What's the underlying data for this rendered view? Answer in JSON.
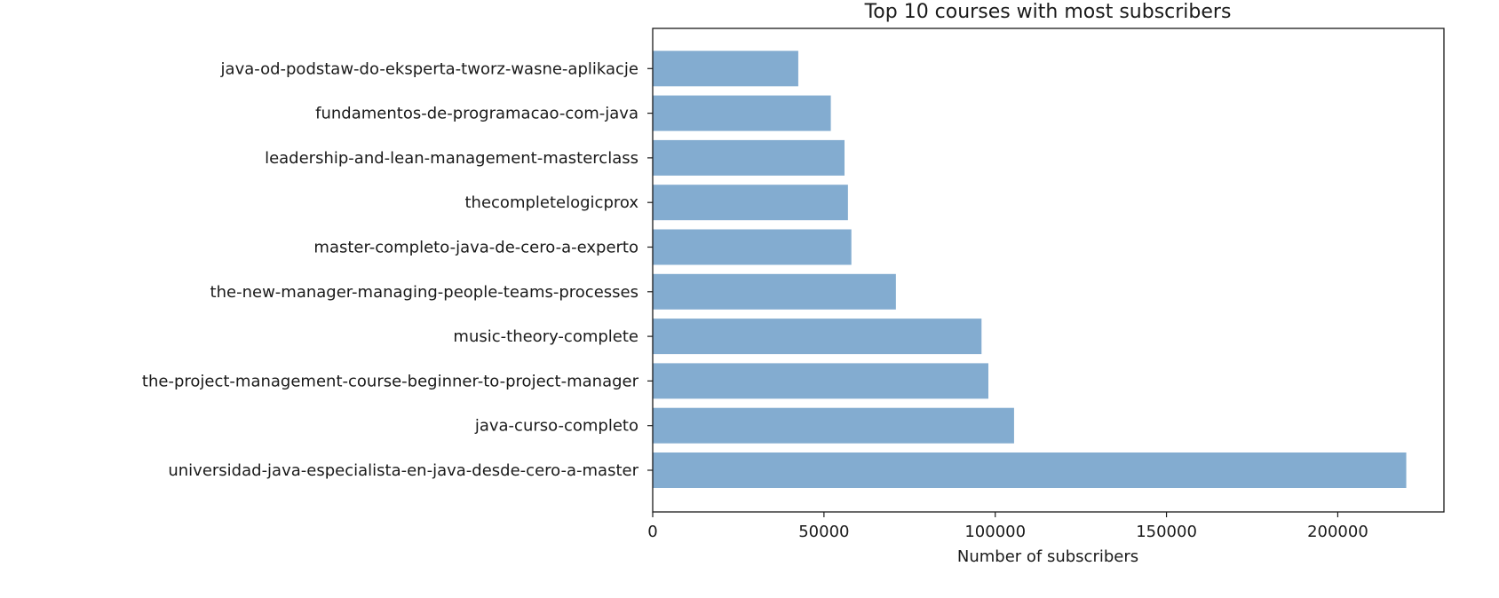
{
  "chart_data": {
    "type": "bar",
    "orientation": "horizontal",
    "title": "Top 10 courses with most subscribers",
    "xlabel": "Number of subscribers",
    "ylabel": "",
    "xlim": [
      0,
      231000
    ],
    "xticks": [
      0,
      50000,
      100000,
      150000,
      200000
    ],
    "xtick_labels": [
      "0",
      "50000",
      "100000",
      "150000",
      "200000"
    ],
    "categories": [
      "universidad-java-especialista-en-java-desde-cero-a-master",
      "java-curso-completo",
      "the-project-management-course-beginner-to-project-manager",
      "music-theory-complete",
      "the-new-manager-managing-people-teams-processes",
      "master-completo-java-de-cero-a-experto",
      "thecompletelogicprox",
      "leadership-and-lean-management-masterclass",
      "fundamentos-de-programacao-com-java",
      "java-od-podstaw-do-eksperta-tworz-wasne-aplikacje"
    ],
    "values": [
      220000,
      105500,
      98000,
      96000,
      71000,
      58000,
      57000,
      56000,
      52000,
      42500
    ],
    "bar_color": "#83acd0",
    "grid": false
  }
}
